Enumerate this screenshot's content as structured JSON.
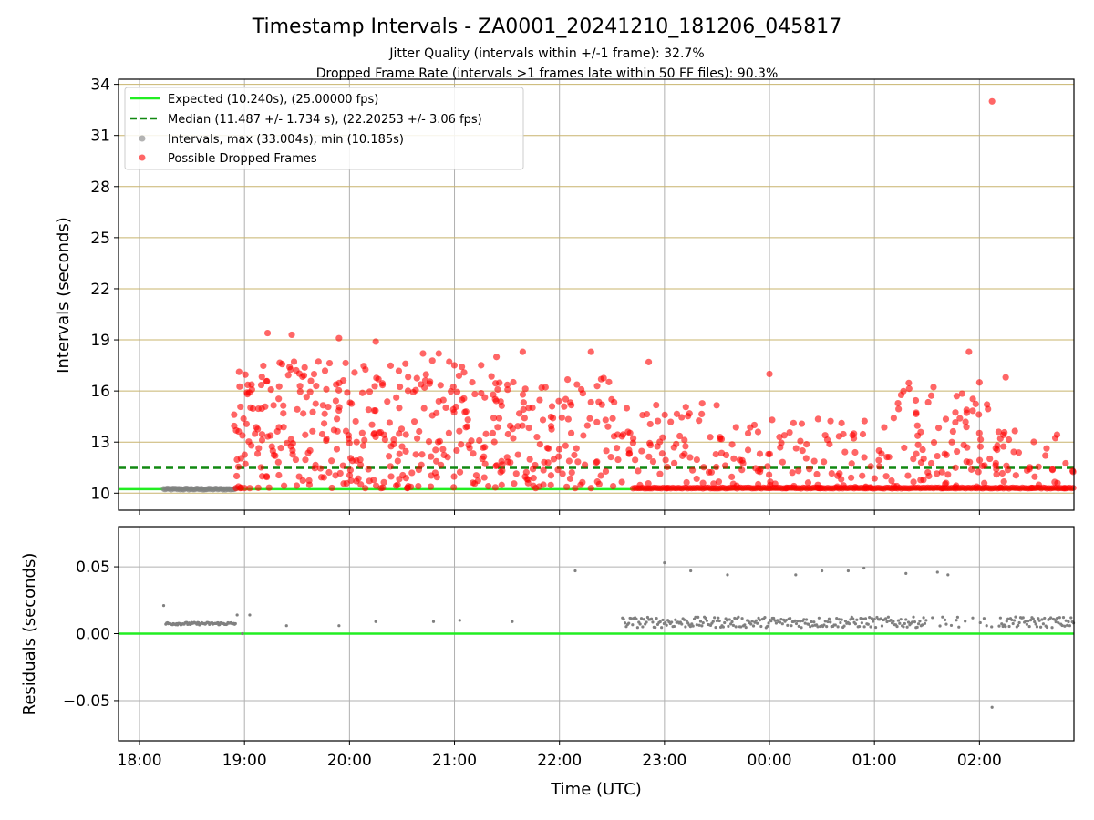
{
  "figure": {
    "title": "Timestamp Intervals - ZA0001_20241210_181206_045817",
    "subtitle1": "Jitter Quality (intervals within +/-1 frame): 32.7%",
    "subtitle2": "Dropped Frame Rate (intervals >1 frames late within 50 FF files): 90.3%"
  },
  "colors": {
    "expected": "#22ee22",
    "median": "#118811",
    "intervals": "#808080",
    "dropped": "#ff0000",
    "hgrid_top": "#c8b46e",
    "grid": "#b0b0b0"
  },
  "chart_data": [
    {
      "type": "scatter",
      "ylabel": "Intervals (seconds)",
      "ylim": [
        9.0,
        34.3
      ],
      "xlim_hours": [
        -0.2,
        8.9
      ],
      "yticks": [
        10,
        13,
        16,
        19,
        22,
        25,
        28,
        31,
        34
      ],
      "xticks": [
        0,
        1,
        2,
        3,
        4,
        5,
        6,
        7,
        8
      ],
      "grid": true,
      "legend_placement": "top-left",
      "legend": [
        "Expected (10.240s), (25.00000 fps)",
        "Median (11.487 +/- 1.734 s), (22.20253 +/- 3.06 fps)",
        "Intervals, max (33.004s), min (10.185s)",
        "Possible Dropped Frames"
      ],
      "expected_value": 10.24,
      "median_value": 11.487,
      "series": [
        {
          "name": "Intervals, max (33.004s), min (10.185s)",
          "note": "dense run of ~10.24s intervals from 18:14 to 18:56",
          "x_range_hours": [
            0.23,
            0.92
          ],
          "y": 10.24
        },
        {
          "name": "Possible Dropped Frames",
          "note": "scattered intervals 10.2–19.5s from 18:55 to 02:55; isolated outlier 33.0s near 02:07",
          "outlier": {
            "x_hours": 8.12,
            "y": 33.0
          }
        }
      ]
    },
    {
      "type": "scatter",
      "ylabel": "Residuals (seconds)",
      "xlabel": "Time (UTC)",
      "ylim": [
        -0.08,
        0.08
      ],
      "yticks": [
        0.05,
        0.0,
        -0.05
      ],
      "ytick_labels": [
        "0.05",
        "0.00",
        "−0.05"
      ],
      "xticks": [
        0,
        1,
        2,
        3,
        4,
        5,
        6,
        7,
        8
      ],
      "xtick_labels": [
        "18:00",
        "19:00",
        "20:00",
        "21:00",
        "22:00",
        "23:00",
        "00:00",
        "01:00",
        "02:00"
      ],
      "grid": true,
      "reference_line": 0.0,
      "series": [
        {
          "name": "Residuals",
          "note": "mostly 0.005–0.010s; notable points listed",
          "points": [
            [
              0.23,
              0.021
            ],
            [
              0.93,
              0.014
            ],
            [
              0.98,
              0.0
            ],
            [
              1.05,
              0.014
            ],
            [
              1.4,
              0.006
            ],
            [
              1.9,
              0.006
            ],
            [
              2.25,
              0.009
            ],
            [
              2.8,
              0.009
            ],
            [
              3.05,
              0.01
            ],
            [
              3.55,
              0.009
            ],
            [
              4.15,
              0.047
            ],
            [
              5.0,
              0.053
            ],
            [
              5.25,
              0.047
            ],
            [
              5.6,
              0.044
            ],
            [
              6.25,
              0.044
            ],
            [
              6.5,
              0.047
            ],
            [
              6.75,
              0.047
            ],
            [
              6.9,
              0.049
            ],
            [
              7.3,
              0.045
            ],
            [
              7.6,
              0.046
            ],
            [
              7.7,
              0.044
            ],
            [
              8.12,
              -0.055
            ]
          ]
        }
      ]
    }
  ]
}
